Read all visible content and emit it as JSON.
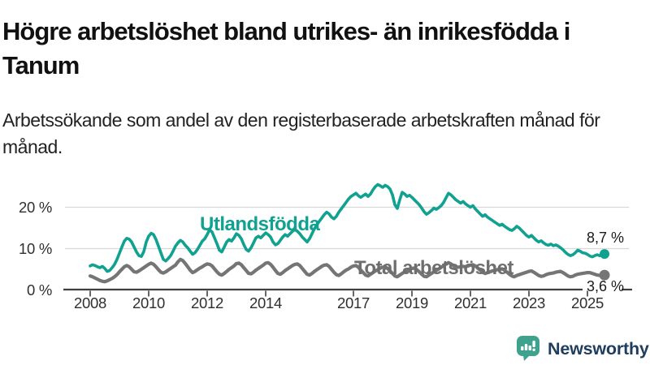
{
  "header": {
    "title": "Högre arbetslöshet bland utrikes- än inrikesfödda i Tanum",
    "subtitle": "Arbetssökande som andel av den registerbaserade arbetskraften månad för månad."
  },
  "branding": {
    "logo_text": "Newsworthy",
    "logo_icon": "bar-chart-speech-bubble-icon",
    "logo_bubble_color": "#3EA28F",
    "logo_text_color": "#1F3D5C"
  },
  "colors": {
    "accent_teal": "#10A191",
    "neutral_gray": "#757575",
    "grid": "#d9d9d9",
    "axis": "#3f3f3f",
    "annotation": "#1a1a1a"
  },
  "chart_data": {
    "type": "line",
    "title": "Högre arbetslöshet bland utrikes- än inrikesfödda i Tanum",
    "subtitle": "Arbetssökande som andel av den registerbaserade arbetskraften månad för månad.",
    "unit": "%",
    "frequency": "monthly",
    "x_start": "2008-01",
    "x_end": "2025-08",
    "x_ticks": [
      2008,
      2010,
      2012,
      2014,
      2017,
      2019,
      2021,
      2023,
      2025
    ],
    "y_ticks": [
      {
        "value": 0,
        "label": "0 %"
      },
      {
        "value": 10,
        "label": "10 %"
      },
      {
        "value": 20,
        "label": "20 %"
      }
    ],
    "ylim": [
      0,
      27
    ],
    "grid": "horizontal",
    "legend": "inline-labels",
    "series": [
      {
        "name": "Utlandsfödda",
        "color": "#10A191",
        "end_label": "8,7 %",
        "last_value": 8.7,
        "values": [
          5.8,
          6.1,
          5.9,
          5.6,
          5.4,
          5.7,
          5.2,
          4.5,
          4.7,
          5.4,
          6.2,
          7.4,
          8.9,
          10.4,
          11.8,
          12.5,
          12.3,
          11.6,
          10.4,
          9.2,
          8.3,
          8.1,
          9.3,
          11.6,
          13.0,
          13.7,
          13.4,
          12.2,
          10.6,
          9.0,
          7.4,
          7.0,
          7.6,
          8.3,
          9.4,
          10.6,
          11.4,
          12.0,
          11.6,
          10.8,
          10.2,
          9.4,
          8.6,
          9.0,
          9.8,
          10.8,
          11.8,
          12.4,
          13.4,
          14.6,
          14.0,
          12.6,
          11.2,
          9.6,
          9.2,
          10.4,
          11.6,
          12.2,
          11.8,
          12.6,
          13.6,
          13.2,
          12.4,
          11.0,
          9.8,
          9.4,
          10.2,
          11.4,
          12.6,
          13.0,
          12.6,
          13.2,
          13.8,
          13.4,
          12.8,
          11.6,
          10.9,
          11.2,
          12.0,
          12.8,
          13.4,
          13.0,
          13.6,
          14.2,
          14.6,
          14.2,
          13.6,
          12.8,
          12.2,
          11.6,
          12.4,
          13.6,
          14.8,
          15.8,
          16.6,
          17.4,
          18.2,
          18.8,
          18.4,
          17.6,
          17.2,
          17.8,
          18.8,
          19.6,
          20.4,
          21.2,
          22.0,
          22.6,
          23.0,
          23.4,
          22.8,
          22.4,
          22.8,
          23.2,
          22.6,
          23.2,
          24.2,
          25.0,
          25.5,
          25.2,
          24.8,
          25.3,
          25.0,
          24.4,
          23.0,
          20.6,
          19.7,
          21.8,
          23.6,
          23.2,
          22.6,
          22.9,
          22.4,
          21.8,
          21.2,
          20.6,
          19.8,
          18.9,
          18.3,
          18.7,
          19.2,
          19.8,
          19.5,
          19.9,
          20.4,
          21.2,
          22.3,
          23.4,
          23.0,
          22.4,
          21.8,
          21.4,
          21.0,
          21.4,
          20.8,
          20.4,
          20.0,
          20.4,
          19.6,
          19.0,
          18.4,
          17.8,
          18.2,
          17.6,
          17.2,
          16.8,
          16.4,
          16.0,
          15.6,
          15.9,
          15.4,
          15.0,
          14.6,
          14.4,
          14.8,
          15.4,
          15.0,
          14.4,
          13.8,
          13.2,
          12.8,
          13.2,
          12.6,
          12.0,
          11.6,
          11.9,
          11.4,
          11.0,
          10.8,
          11.1,
          10.7,
          10.9,
          10.6,
          10.2,
          9.7,
          9.1,
          8.6,
          8.3,
          8.5,
          9.0,
          9.6,
          9.4,
          9.0,
          8.9,
          8.6,
          8.2,
          8.0,
          8.3,
          8.5,
          8.3,
          8.5,
          8.7
        ]
      },
      {
        "name": "Total arbetslöshet",
        "color": "#757575",
        "end_label": "3,6 %",
        "last_value": 3.6,
        "values": [
          3.4,
          3.2,
          2.9,
          2.6,
          2.3,
          2.1,
          2.0,
          2.2,
          2.5,
          2.8,
          3.2,
          3.7,
          4.4,
          5.0,
          5.6,
          5.9,
          5.6,
          5.0,
          4.4,
          4.3,
          4.6,
          5.0,
          5.4,
          5.8,
          6.2,
          6.5,
          6.2,
          5.6,
          4.9,
          4.3,
          4.1,
          4.4,
          4.8,
          5.2,
          5.6,
          6.0,
          6.8,
          7.4,
          7.1,
          6.4,
          5.6,
          4.8,
          4.2,
          4.5,
          4.9,
          5.3,
          5.6,
          6.0,
          6.3,
          6.2,
          5.8,
          5.1,
          4.4,
          3.8,
          3.6,
          4.0,
          4.5,
          5.0,
          5.4,
          5.8,
          6.4,
          6.5,
          6.1,
          5.4,
          4.7,
          4.0,
          3.9,
          4.3,
          4.8,
          5.2,
          5.6,
          6.0,
          6.5,
          6.6,
          6.2,
          5.5,
          4.7,
          4.0,
          3.8,
          4.2,
          4.7,
          5.1,
          5.5,
          5.9,
          6.2,
          6.3,
          5.9,
          5.2,
          4.5,
          3.8,
          3.6,
          4.0,
          4.5,
          4.9,
          5.3,
          5.7,
          6.0,
          6.1,
          5.7,
          5.0,
          4.3,
          3.7,
          3.5,
          3.9,
          4.4,
          4.8,
          5.1,
          5.5,
          5.8,
          5.9,
          5.5,
          4.8,
          4.2,
          3.6,
          3.4,
          3.8,
          4.2,
          4.6,
          4.9,
          5.3,
          5.5,
          5.6,
          5.2,
          4.6,
          4.0,
          3.4,
          3.2,
          3.6,
          4.0,
          4.4,
          4.7,
          5.0,
          5.2,
          5.3,
          4.9,
          4.4,
          3.8,
          3.3,
          3.2,
          3.6,
          4.0,
          4.4,
          4.7,
          5.1,
          5.5,
          5.8,
          6.3,
          6.6,
          6.3,
          5.9,
          5.5,
          5.5,
          5.6,
          5.7,
          5.6,
          5.8,
          6.0,
          6.1,
          5.8,
          5.3,
          4.8,
          4.3,
          4.0,
          4.2,
          4.4,
          4.6,
          4.7,
          4.9,
          5.0,
          5.1,
          4.8,
          4.3,
          3.8,
          3.4,
          3.2,
          3.5,
          3.7,
          3.9,
          4.1,
          4.3,
          4.5,
          4.6,
          4.3,
          3.9,
          3.5,
          3.3,
          3.4,
          3.7,
          3.9,
          4.0,
          4.1,
          4.3,
          4.4,
          4.5,
          4.2,
          3.8,
          3.4,
          3.2,
          3.3,
          3.6,
          3.8,
          3.9,
          4.0,
          4.1,
          4.2,
          4.2,
          4.0,
          3.8,
          3.6,
          3.5,
          3.5,
          3.6
        ]
      }
    ]
  }
}
